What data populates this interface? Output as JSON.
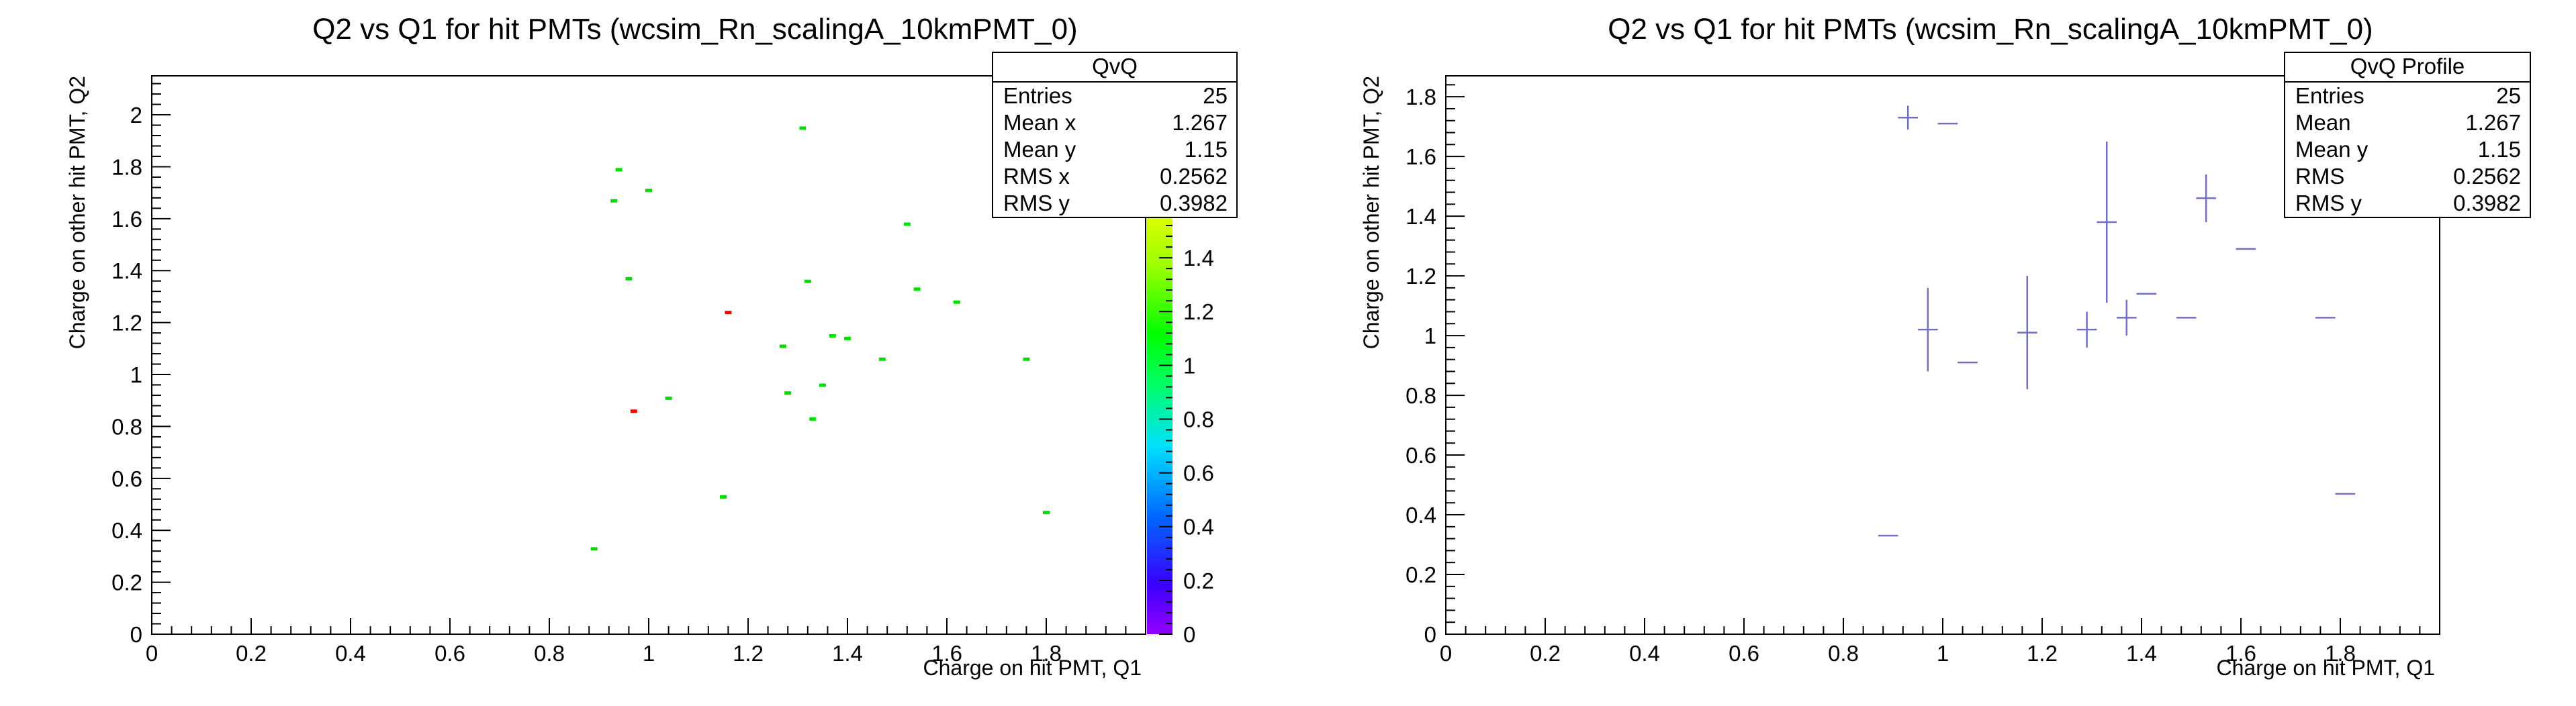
{
  "chart_data": [
    {
      "type": "scatter",
      "title": "Q2 vs Q1 for hit PMTs (wcsim_Rn_scalingA_10kmPMT_0)",
      "xlabel": "Charge on hit PMT, Q1",
      "ylabel": "Charge on other hit PMT, Q2",
      "xlim": [
        0,
        2.0
      ],
      "ylim": [
        0,
        2.15
      ],
      "xticks": [
        0,
        0.2,
        0.4,
        0.6,
        0.8,
        1,
        1.2,
        1.4,
        1.6,
        1.8
      ],
      "xtick_labels": [
        "0",
        "0.2",
        "0.4",
        "0.6",
        "0.8",
        "1",
        "1.2",
        "1.4",
        "1.6",
        "1.8"
      ],
      "yticks": [
        0,
        0.2,
        0.4,
        0.6,
        0.8,
        1,
        1.2,
        1.4,
        1.6,
        1.8,
        2
      ],
      "ytick_labels": [
        "0",
        "0.2",
        "0.4",
        "0.6",
        "0.8",
        "1",
        "1.2",
        "1.4",
        "1.6",
        "1.8",
        "2"
      ],
      "colorbar": {
        "min": 0,
        "max": 1.55,
        "ticks": [
          0,
          0.2,
          0.4,
          0.6,
          0.8,
          1,
          1.2,
          1.4
        ],
        "tick_labels": [
          "0",
          "0.2",
          "0.4",
          "0.6",
          "0.8",
          "1",
          "1.2",
          "1.4"
        ]
      },
      "points": [
        {
          "x": 0.89,
          "y": 0.33,
          "w": 1
        },
        {
          "x": 0.93,
          "y": 1.67,
          "w": 1
        },
        {
          "x": 0.94,
          "y": 1.79,
          "w": 1
        },
        {
          "x": 0.96,
          "y": 1.37,
          "w": 1
        },
        {
          "x": 0.97,
          "y": 0.86,
          "w": 2
        },
        {
          "x": 1.0,
          "y": 1.71,
          "w": 1
        },
        {
          "x": 1.04,
          "y": 0.91,
          "w": 1
        },
        {
          "x": 1.15,
          "y": 0.53,
          "w": 1
        },
        {
          "x": 1.16,
          "y": 1.24,
          "w": 2
        },
        {
          "x": 1.27,
          "y": 1.11,
          "w": 1
        },
        {
          "x": 1.28,
          "y": 0.93,
          "w": 1
        },
        {
          "x": 1.31,
          "y": 1.95,
          "w": 1
        },
        {
          "x": 1.32,
          "y": 1.36,
          "w": 1
        },
        {
          "x": 1.33,
          "y": 0.83,
          "w": 1
        },
        {
          "x": 1.35,
          "y": 0.96,
          "w": 1
        },
        {
          "x": 1.37,
          "y": 1.15,
          "w": 1
        },
        {
          "x": 1.4,
          "y": 1.14,
          "w": 1
        },
        {
          "x": 1.47,
          "y": 1.06,
          "w": 1
        },
        {
          "x": 1.52,
          "y": 1.58,
          "w": 1
        },
        {
          "x": 1.54,
          "y": 1.33,
          "w": 1
        },
        {
          "x": 1.62,
          "y": 1.28,
          "w": 1
        },
        {
          "x": 1.76,
          "y": 1.06,
          "w": 1
        },
        {
          "x": 1.8,
          "y": 0.47,
          "w": 1
        }
      ],
      "stats": {
        "header": "QvQ",
        "rows": [
          {
            "label": "Entries",
            "value": "25"
          },
          {
            "label": "Mean x",
            "value": "1.267"
          },
          {
            "label": "Mean y",
            "value": "1.15"
          },
          {
            "label": "RMS x",
            "value": "0.2562"
          },
          {
            "label": "RMS y",
            "value": "0.3982"
          }
        ]
      }
    },
    {
      "type": "profile",
      "title": "Q2 vs Q1 for hit PMTs (wcsim_Rn_scalingA_10kmPMT_0)",
      "xlabel": "Charge on hit PMT, Q1",
      "ylabel": "Charge on other hit PMT, Q2",
      "xlim": [
        0,
        2.0
      ],
      "ylim": [
        0,
        1.87
      ],
      "line_color": "#6f6fc8",
      "xticks": [
        0,
        0.2,
        0.4,
        0.6,
        0.8,
        1,
        1.2,
        1.4,
        1.6,
        1.8
      ],
      "xtick_labels": [
        "0",
        "0.2",
        "0.4",
        "0.6",
        "0.8",
        "1",
        "1.2",
        "1.4",
        "1.6",
        "1.8"
      ],
      "yticks": [
        0,
        0.2,
        0.4,
        0.6,
        0.8,
        1,
        1.2,
        1.4,
        1.6,
        1.8
      ],
      "ytick_labels": [
        "0",
        "0.2",
        "0.4",
        "0.6",
        "0.8",
        "1",
        "1.2",
        "1.4",
        "1.6",
        "1.8"
      ],
      "bins": [
        {
          "x": 0.89,
          "y": 0.33,
          "err": 0
        },
        {
          "x": 0.93,
          "y": 1.73,
          "err": 0.04
        },
        {
          "x": 0.97,
          "y": 1.02,
          "err": 0.14
        },
        {
          "x": 1.01,
          "y": 1.71,
          "err": 0
        },
        {
          "x": 1.05,
          "y": 0.91,
          "err": 0
        },
        {
          "x": 1.17,
          "y": 1.01,
          "err": 0.19
        },
        {
          "x": 1.29,
          "y": 1.02,
          "err": 0.06
        },
        {
          "x": 1.33,
          "y": 1.38,
          "err": 0.27
        },
        {
          "x": 1.37,
          "y": 1.06,
          "err": 0.06
        },
        {
          "x": 1.41,
          "y": 1.14,
          "err": 0
        },
        {
          "x": 1.49,
          "y": 1.06,
          "err": 0
        },
        {
          "x": 1.53,
          "y": 1.46,
          "err": 0.08
        },
        {
          "x": 1.61,
          "y": 1.29,
          "err": 0
        },
        {
          "x": 1.77,
          "y": 1.06,
          "err": 0
        },
        {
          "x": 1.81,
          "y": 0.47,
          "err": 0
        }
      ],
      "stats": {
        "header": "QvQ Profile",
        "rows": [
          {
            "label": "Entries",
            "value": "25"
          },
          {
            "label": "Mean",
            "value": "1.267"
          },
          {
            "label": "Mean y",
            "value": "1.15"
          },
          {
            "label": "RMS",
            "value": "0.2562"
          },
          {
            "label": "RMS y",
            "value": "0.3982"
          }
        ]
      }
    }
  ]
}
